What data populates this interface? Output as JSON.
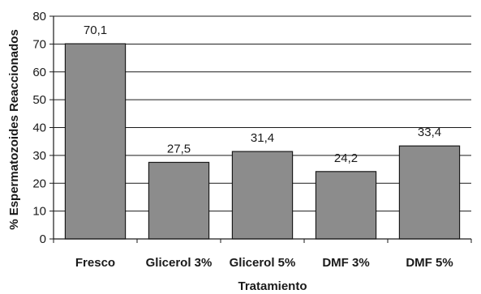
{
  "chart_data": {
    "type": "bar",
    "title": "",
    "xlabel": "Tratamiento",
    "ylabel": "% Espermatozoides Reaccionados",
    "categories": [
      "Fresco",
      "Glicerol 3%",
      "Glicerol 5%",
      "DMF 3%",
      "DMF 5%"
    ],
    "values": [
      70.1,
      27.5,
      31.4,
      24.2,
      33.4
    ],
    "data_labels": [
      "70,1",
      "27,5",
      "31,4",
      "24,2",
      "33,4"
    ],
    "yticks": [
      0,
      10,
      20,
      30,
      40,
      50,
      60,
      70,
      80
    ],
    "ylim": [
      0,
      80
    ],
    "grid": true,
    "legend": "none",
    "colors": {
      "bar_fill": "#8c8c8c",
      "bar_stroke": "#1a1a1a",
      "grid": "#1a1a1a",
      "axis": "#1a1a1a"
    }
  }
}
